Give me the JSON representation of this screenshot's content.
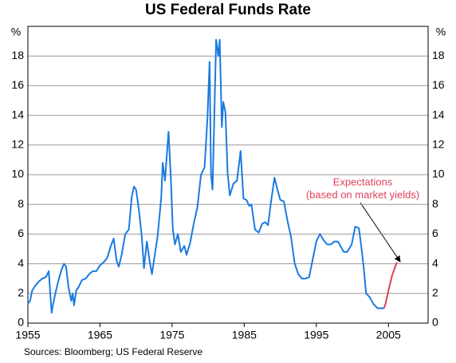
{
  "chart_data": {
    "type": "line",
    "title": "US Federal Funds Rate",
    "y_unit_label": "%",
    "source": "Sources: Bloomberg; US Federal Reserve",
    "annotation": [
      "Expectations",
      "(based on market yields)"
    ],
    "xlim": [
      1955,
      2010.5
    ],
    "xticks": [
      1955,
      1965,
      1975,
      1985,
      1995,
      2005
    ],
    "ylim": [
      0,
      20
    ],
    "yticks": [
      0,
      2,
      4,
      6,
      8,
      10,
      12,
      14,
      16,
      18
    ],
    "y2lim": [
      0,
      20
    ],
    "y2ticks": [
      0,
      2,
      4,
      6,
      8,
      10,
      12,
      14,
      16,
      18
    ],
    "grid": true,
    "series": [
      {
        "name": "Federal funds rate",
        "color": "#1a7ae0",
        "x": [
          1955.0,
          1955.3,
          1955.6,
          1956.0,
          1956.5,
          1957.0,
          1957.5,
          1957.9,
          1958.1,
          1958.3,
          1958.5,
          1958.8,
          1959.2,
          1959.6,
          1960.0,
          1960.3,
          1960.6,
          1960.8,
          1961.0,
          1961.2,
          1961.4,
          1961.7,
          1962.0,
          1962.5,
          1963.0,
          1963.5,
          1964.0,
          1964.5,
          1965.0,
          1965.5,
          1966.0,
          1966.5,
          1966.9,
          1967.3,
          1967.6,
          1968.0,
          1968.5,
          1969.0,
          1969.4,
          1969.7,
          1970.0,
          1970.4,
          1970.8,
          1971.1,
          1971.5,
          1971.9,
          1972.2,
          1972.6,
          1973.0,
          1973.5,
          1973.7,
          1974.0,
          1974.5,
          1974.8,
          1975.1,
          1975.4,
          1975.8,
          1976.2,
          1976.7,
          1977.0,
          1977.5,
          1978.0,
          1978.5,
          1979.0,
          1979.5,
          1979.9,
          1980.2,
          1980.4,
          1980.6,
          1980.9,
          1981.1,
          1981.4,
          1981.6,
          1981.9,
          1982.1,
          1982.4,
          1982.7,
          1983.0,
          1983.5,
          1984.0,
          1984.5,
          1984.9,
          1985.3,
          1985.7,
          1986.0,
          1986.5,
          1987.0,
          1987.5,
          1987.9,
          1988.3,
          1988.7,
          1989.2,
          1989.6,
          1990.0,
          1990.5,
          1991.0,
          1991.5,
          1992.0,
          1992.5,
          1993.0,
          1993.5,
          1994.0,
          1994.5,
          1995.0,
          1995.5,
          1996.0,
          1996.5,
          1997.0,
          1997.5,
          1998.0,
          1998.8,
          1999.3,
          1999.9,
          2000.4,
          2000.9,
          2001.2,
          2001.6,
          2001.9,
          2002.4,
          2002.9,
          2003.5,
          2004.4
        ],
        "values": [
          1.3,
          1.5,
          2.2,
          2.5,
          2.8,
          3.0,
          3.1,
          3.5,
          2.0,
          0.7,
          1.3,
          2.0,
          2.8,
          3.5,
          4.0,
          3.8,
          2.5,
          2.0,
          1.5,
          2.0,
          1.2,
          2.2,
          2.4,
          2.9,
          3.0,
          3.3,
          3.5,
          3.5,
          3.9,
          4.1,
          4.4,
          5.2,
          5.7,
          4.2,
          3.8,
          4.6,
          6.0,
          6.3,
          8.5,
          9.2,
          9.0,
          7.6,
          5.8,
          3.7,
          5.5,
          4.1,
          3.3,
          4.6,
          5.9,
          8.5,
          10.8,
          9.6,
          12.9,
          10.0,
          6.3,
          5.3,
          6.0,
          4.8,
          5.2,
          4.6,
          5.4,
          6.7,
          7.8,
          10.0,
          10.5,
          13.8,
          17.6,
          10.0,
          9.0,
          15.0,
          19.1,
          18.0,
          19.1,
          13.2,
          14.9,
          14.2,
          10.1,
          8.6,
          9.4,
          9.6,
          11.6,
          8.4,
          8.3,
          7.9,
          8.0,
          6.3,
          6.1,
          6.7,
          6.8,
          6.6,
          8.1,
          9.8,
          9.0,
          8.3,
          8.2,
          6.9,
          5.8,
          4.0,
          3.3,
          3.0,
          3.0,
          3.1,
          4.3,
          5.5,
          6.0,
          5.6,
          5.3,
          5.3,
          5.5,
          5.5,
          4.8,
          4.8,
          5.3,
          6.5,
          6.4,
          5.3,
          3.6,
          2.0,
          1.75,
          1.3,
          1.0,
          1.0
        ]
      },
      {
        "name": "Expectations",
        "color": "#e0405a",
        "x": [
          2004.4,
          2004.6,
          2005.0,
          2005.5,
          2006.0,
          2006.2
        ],
        "values": [
          1.0,
          1.3,
          2.2,
          3.2,
          3.9,
          4.1
        ]
      }
    ]
  }
}
